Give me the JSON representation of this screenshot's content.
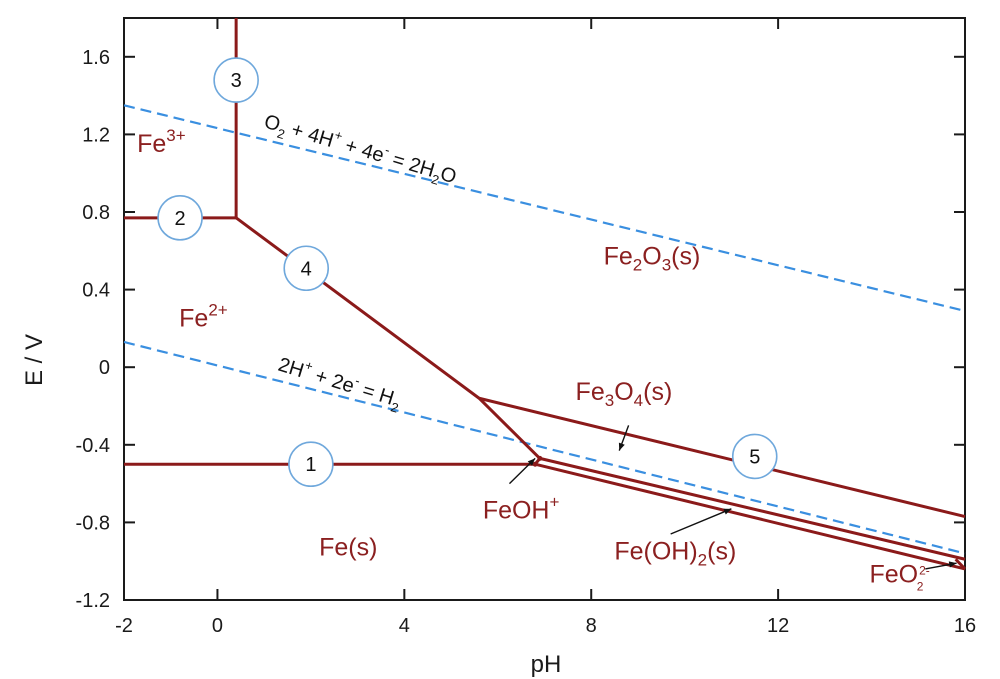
{
  "chart_data": {
    "type": "line",
    "xlabel": "pH",
    "ylabel": "E / V",
    "xlim": [
      -2,
      16
    ],
    "ylim": [
      -1.2,
      1.8
    ],
    "x_ticks": [
      -2,
      0,
      4,
      8,
      12,
      16
    ],
    "x_tick_labels": [
      "-2",
      "0",
      "4",
      "8",
      "12",
      "16"
    ],
    "y_ticks": [
      -1.2,
      -0.8,
      -0.4,
      0,
      0.4,
      0.8,
      1.2,
      1.6
    ],
    "y_tick_labels": [
      "-1.2",
      "-0.8",
      "-0.4",
      "0",
      "0.4",
      "0.8",
      "1.2",
      "1.6"
    ],
    "colors": {
      "boundary": "#8b1a1a",
      "species_text": "#8b2020",
      "water_line": "#3a8fe0",
      "circle_stroke": "#6fa8dc",
      "axis": "#1a1a1a"
    },
    "boundaries": [
      {
        "label": "1",
        "points": [
          [
            -2,
            -0.5
          ],
          [
            6.8,
            -0.5
          ]
        ]
      },
      {
        "label": "2",
        "points": [
          [
            -2,
            0.77
          ],
          [
            0.4,
            0.77
          ]
        ]
      },
      {
        "label": "3",
        "points": [
          [
            0.4,
            1.8
          ],
          [
            0.4,
            0.77
          ]
        ]
      },
      {
        "label": "4",
        "points": [
          [
            0.4,
            0.77
          ],
          [
            5.6,
            -0.16
          ],
          [
            6.9,
            -0.47
          ]
        ]
      },
      {
        "label": "5",
        "points": [
          [
            5.6,
            -0.16
          ],
          [
            16,
            -0.77
          ]
        ]
      },
      {
        "label": "",
        "points": [
          [
            6.8,
            -0.5
          ],
          [
            6.9,
            -0.47
          ]
        ]
      },
      {
        "label": "",
        "points": [
          [
            6.8,
            -0.5
          ],
          [
            16,
            -1.04
          ]
        ]
      },
      {
        "label": "",
        "points": [
          [
            6.9,
            -0.47
          ],
          [
            16,
            -0.99
          ]
        ]
      },
      {
        "label": "",
        "points": [
          [
            15.8,
            -0.99
          ],
          [
            16,
            -1.04
          ]
        ]
      }
    ],
    "circle_labels": [
      {
        "text": "1",
        "x": 2.0,
        "y": -0.5
      },
      {
        "text": "2",
        "x": -0.8,
        "y": 0.77
      },
      {
        "text": "3",
        "x": 0.4,
        "y": 1.48
      },
      {
        "text": "4",
        "x": 1.9,
        "y": 0.51
      },
      {
        "text": "5",
        "x": 11.5,
        "y": -0.46
      }
    ],
    "water_lines": [
      {
        "label": "O2 + 4H+ + 4e- = 2H2O",
        "points": [
          [
            -2,
            1.35
          ],
          [
            16,
            0.29
          ]
        ]
      },
      {
        "label": "2H+ + 2e- = H2",
        "points": [
          [
            -2,
            0.13
          ],
          [
            16,
            -0.96
          ]
        ]
      }
    ],
    "species": [
      {
        "name": "Fe3+",
        "x": -1.2,
        "y": 1.11
      },
      {
        "name": "Fe2+",
        "x": -0.3,
        "y": 0.21
      },
      {
        "name": "Fe2O3(s)",
        "x": 9.3,
        "y": 0.53
      },
      {
        "name": "Fe3O4(s)",
        "x": 8.7,
        "y": -0.17
      },
      {
        "name": "FeOH+",
        "x": 6.5,
        "y": -0.78
      },
      {
        "name": "Fe(s)",
        "x": 2.8,
        "y": -0.97
      },
      {
        "name": "Fe(OH)2(s)",
        "x": 9.8,
        "y": -0.99
      },
      {
        "name": "FeO22-",
        "x": 14.6,
        "y": -1.11
      }
    ],
    "annotation_arrows": [
      {
        "target": "Fe3O4(s)",
        "from": [
          8.8,
          -0.3
        ],
        "to": [
          8.6,
          -0.43
        ]
      },
      {
        "target": "FeOH+",
        "from": [
          6.25,
          -0.6
        ],
        "to": [
          6.8,
          -0.47
        ]
      },
      {
        "target": "Fe(OH)2(s)",
        "from": [
          9.7,
          -0.86
        ],
        "to": [
          11.0,
          -0.73
        ]
      },
      {
        "target": "FeO22-",
        "from": [
          15.15,
          -1.04
        ],
        "to": [
          15.82,
          -1.01
        ]
      }
    ],
    "labels": {
      "eq_o2": {
        "p1": "O",
        "p1sub": "2",
        "p2": " + 4H",
        "p2sup": "+",
        "p3": " + 4e",
        "p3sup": "-",
        "p4": " = 2H",
        "p4sub": "2",
        "p5": "O"
      },
      "eq_h2": {
        "p1": "2H",
        "p1sup": "+",
        "p2": " + 2e",
        "p2sup": "-",
        "p3": " = H",
        "p3sub": "2"
      },
      "fe3": {
        "base": "Fe",
        "sup": "3+"
      },
      "fe2": {
        "base": "Fe",
        "sup": "2+"
      },
      "fe2o3": {
        "a": "Fe",
        "s1": "2",
        "b": "O",
        "s2": "3",
        "c": "(s)"
      },
      "fe3o4": {
        "a": "Fe",
        "s1": "3",
        "b": "O",
        "s2": "4",
        "c": "(s)"
      },
      "feoh": {
        "base": "FeOH",
        "sup": "+"
      },
      "fes": {
        "text": "Fe(s)"
      },
      "feoh2": {
        "a": "Fe(OH)",
        "s1": "2",
        "c": "(s)"
      },
      "feo2": {
        "base": "FeO",
        "sub": "2",
        "sup": "2-"
      }
    }
  }
}
